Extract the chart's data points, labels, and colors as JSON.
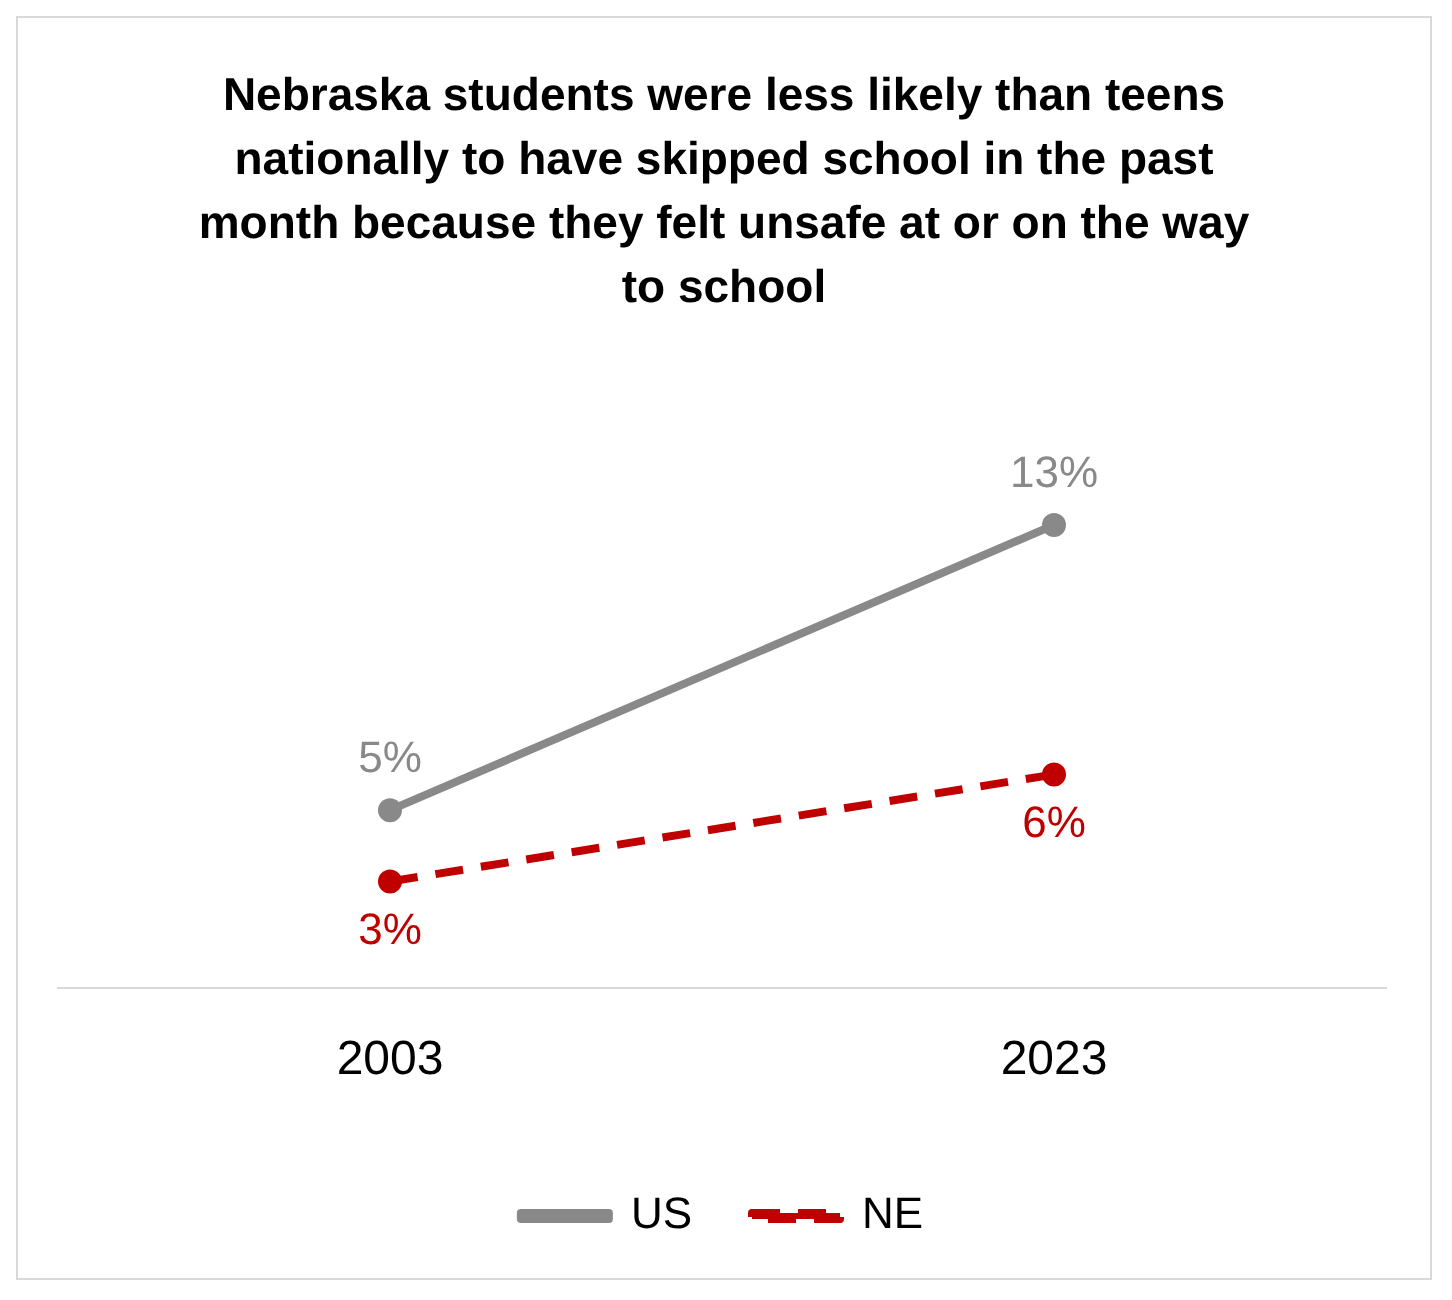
{
  "chart_data": {
    "type": "line",
    "title": "Nebraska students were less likely than teens nationally to have skipped school in the past month because they felt unsafe at or on the way to school",
    "categories": [
      "2003",
      "2023"
    ],
    "series": [
      {
        "name": "US",
        "color": "#898989",
        "values": [
          5,
          13
        ],
        "value_labels": [
          "5%",
          "13%"
        ]
      },
      {
        "name": "NE",
        "color": "#c00000",
        "values": [
          3,
          6
        ],
        "value_labels": [
          "3%",
          "6%"
        ],
        "line_style": "dashed"
      }
    ],
    "marker": "circle",
    "grid": false,
    "legend": "bottom"
  }
}
